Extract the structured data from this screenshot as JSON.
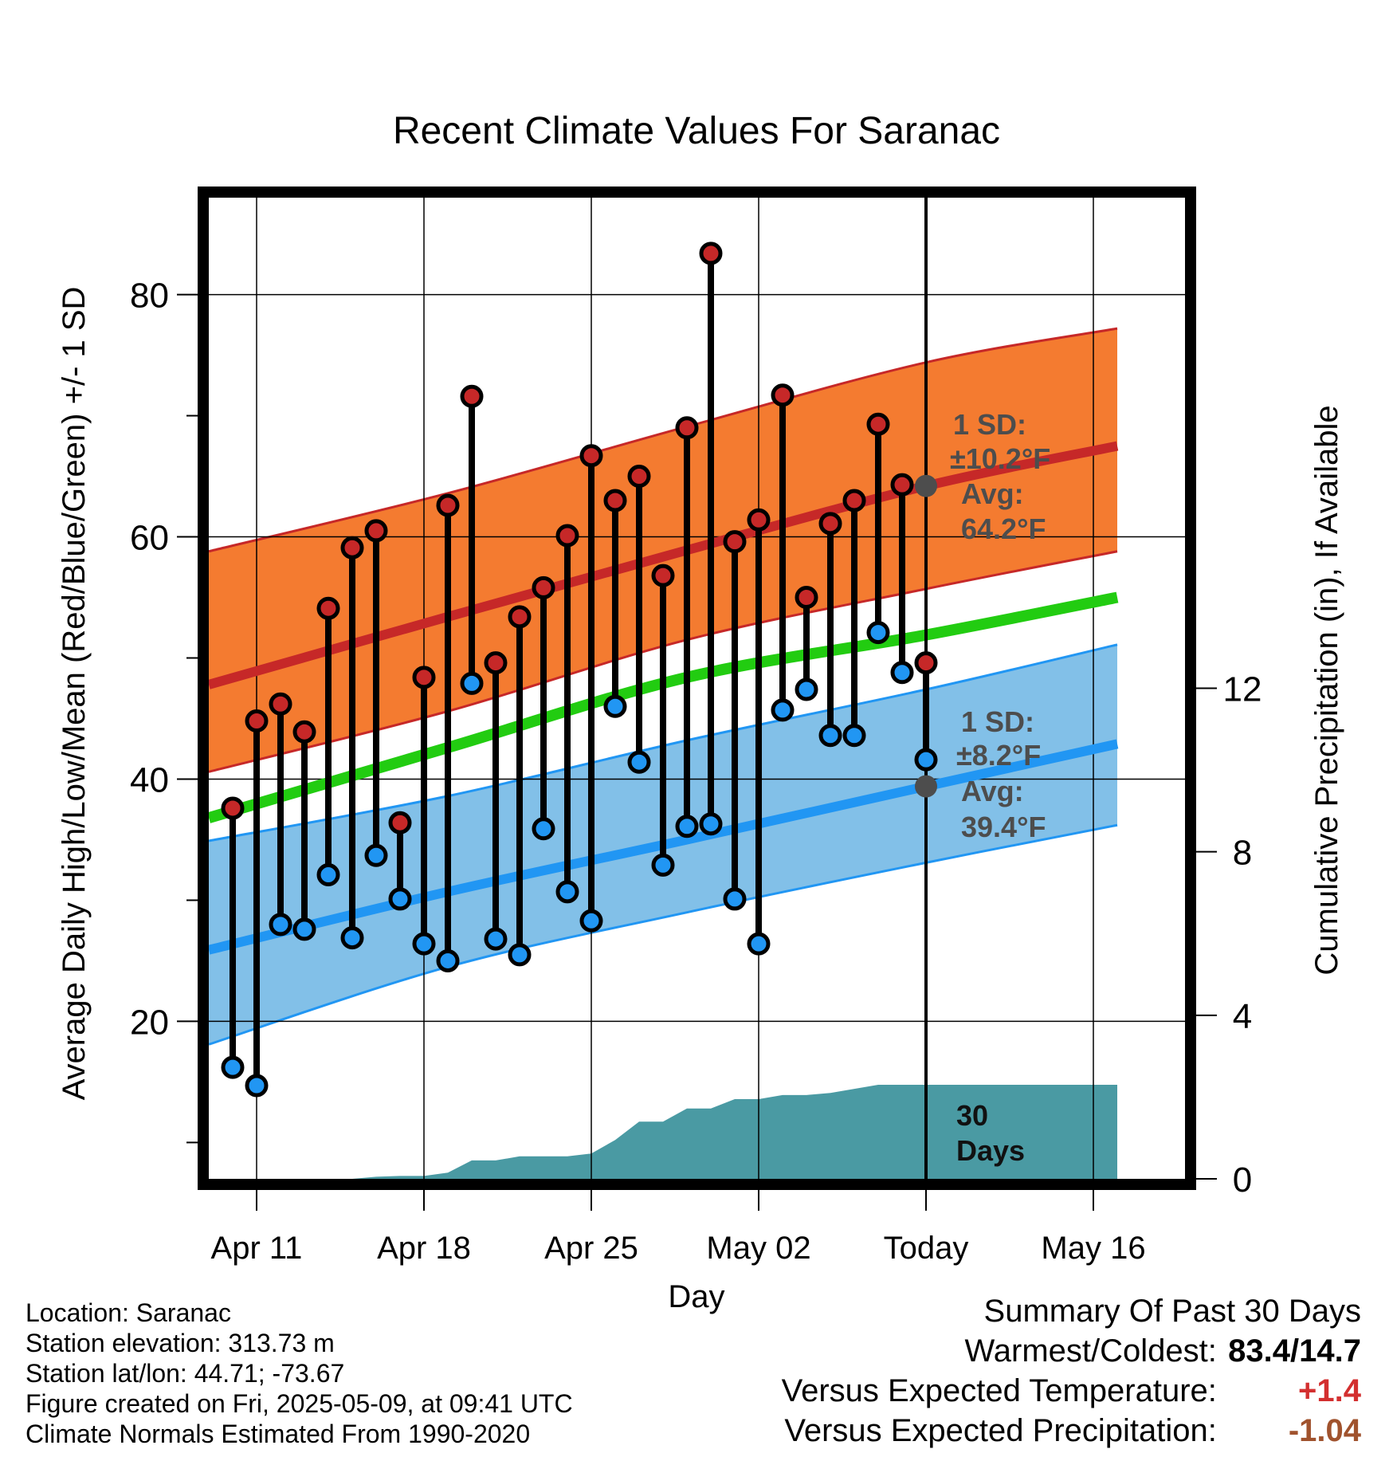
{
  "title": "Recent Climate Values For Saranac",
  "ylabel_left": "Average Daily High/Low/Mean (Red/Blue/Green) +/- 1 SD",
  "ylabel_right": "Cumulative Precipitation (in), If Available",
  "xlabel": "Day",
  "colors": {
    "high": "#c62828",
    "low": "#2196f3",
    "mean": "#22cc11",
    "high_band": "#f47b30",
    "low_band": "#82c0e8",
    "precip": "#4a9aa3",
    "avg_marker": "#4d4d4d",
    "annotation": "#4d4d4d",
    "warm_anomaly": "#d32f2f",
    "precip_anomaly": "#a0522d"
  },
  "annotations": {
    "high_sd_title": "1 SD:",
    "high_sd_value": "±10.2°F",
    "high_avg_title": "Avg:",
    "high_avg_value": "64.2°F",
    "low_sd_title": "1 SD:",
    "low_sd_value": "±8.2°F",
    "low_avg_title": "Avg:",
    "low_avg_value": "39.4°F",
    "days_line1": "30",
    "days_line2": "Days"
  },
  "info": {
    "location": "Location: Saranac",
    "elevation": "Station elevation: 313.73 m",
    "latlon": "Station lat/lon: 44.71; -73.67",
    "created": "Figure created on Fri, 2025-05-09, at 09:41 UTC",
    "normals": "Climate Normals Estimated From 1990-2020"
  },
  "summary": {
    "title": "Summary Of Past 30 Days",
    "warmest_label": "Warmest/Coldest:",
    "warmest_value": "83.4/14.7",
    "temp_label": "Versus Expected Temperature:",
    "temp_value": "+1.4",
    "precip_label": "Versus Expected Precipitation:",
    "precip_value": "-1.04"
  },
  "chart_data": {
    "type": "line",
    "x_axis": {
      "range": [
        "Apr 09",
        "May 18"
      ],
      "ticks": [
        "Apr 11",
        "Apr 18",
        "Apr 25",
        "May 02",
        "Today",
        "May 16"
      ],
      "tick_days": [
        2,
        9,
        16,
        23,
        30,
        37
      ]
    },
    "y_left": {
      "range": [
        7,
        88
      ],
      "ticks": [
        20,
        40,
        60,
        80
      ],
      "minor_ticks": [
        10,
        30,
        50,
        70
      ]
    },
    "y_right": {
      "range": [
        0,
        24
      ],
      "ticks": [
        0,
        4,
        8,
        12
      ]
    },
    "grid": true,
    "today_day": 30,
    "observed": {
      "days": [
        1,
        2,
        3,
        4,
        5,
        6,
        7,
        8,
        9,
        10,
        11,
        12,
        13,
        14,
        15,
        16,
        17,
        18,
        19,
        20,
        21,
        22,
        23,
        24,
        25,
        26,
        27,
        28,
        29,
        30
      ],
      "dates": [
        "Apr 10",
        "Apr 11",
        "Apr 12",
        "Apr 13",
        "Apr 14",
        "Apr 15",
        "Apr 16",
        "Apr 17",
        "Apr 18",
        "Apr 19",
        "Apr 20",
        "Apr 21",
        "Apr 22",
        "Apr 23",
        "Apr 24",
        "Apr 25",
        "Apr 26",
        "Apr 27",
        "Apr 28",
        "Apr 29",
        "Apr 30",
        "May 01",
        "May 02",
        "May 03",
        "May 04",
        "May 05",
        "May 06",
        "May 07",
        "May 08",
        "May 09"
      ],
      "highs": [
        37.6,
        44.8,
        46.2,
        43.9,
        54.1,
        59.1,
        60.5,
        36.4,
        48.4,
        62.6,
        71.6,
        49.6,
        53.4,
        55.8,
        60.1,
        66.7,
        63.0,
        65.0,
        56.8,
        69.0,
        83.4,
        59.6,
        61.4,
        71.7,
        55.0,
        61.1,
        63.0,
        69.3,
        64.3,
        49.6
      ],
      "lows": [
        16.2,
        14.7,
        28.0,
        27.6,
        32.1,
        26.9,
        33.7,
        30.1,
        26.4,
        25.0,
        47.9,
        26.8,
        25.5,
        35.9,
        30.7,
        28.3,
        46.0,
        41.4,
        32.9,
        36.1,
        36.3,
        30.1,
        26.4,
        45.7,
        47.4,
        43.6,
        43.6,
        52.1,
        48.8,
        41.6
      ]
    },
    "normals": {
      "days": [
        0,
        10,
        20,
        30,
        38
      ],
      "high_avg": [
        47.8,
        53.4,
        58.9,
        64.2,
        67.5
      ],
      "high_sd_upper": [
        58.8,
        63.6,
        69.1,
        74.4,
        77.2
      ],
      "high_sd_lower": [
        40.6,
        45.6,
        51.5,
        55.7,
        58.8
      ],
      "mean": [
        36.8,
        42.6,
        48.4,
        51.9,
        55.0
      ],
      "low_avg": [
        25.9,
        30.7,
        35.0,
        39.4,
        42.9
      ],
      "low_sd_upper": [
        34.9,
        38.6,
        43.2,
        47.4,
        51.1
      ],
      "low_sd_lower": [
        18.1,
        24.5,
        29.0,
        33.1,
        36.2
      ]
    },
    "precipitation": {
      "days": [
        0,
        6,
        7,
        8,
        9,
        10,
        11,
        12,
        13,
        14,
        15,
        16,
        17,
        18,
        19,
        20,
        21,
        22,
        23,
        24,
        25,
        26,
        27,
        28,
        29,
        30,
        38
      ],
      "cumulative_in": [
        0,
        0,
        0.05,
        0.07,
        0.07,
        0.15,
        0.45,
        0.45,
        0.55,
        0.55,
        0.55,
        0.62,
        0.95,
        1.4,
        1.4,
        1.72,
        1.72,
        1.95,
        1.95,
        2.05,
        2.05,
        2.1,
        2.2,
        2.3,
        2.3,
        2.3,
        2.3
      ]
    }
  }
}
